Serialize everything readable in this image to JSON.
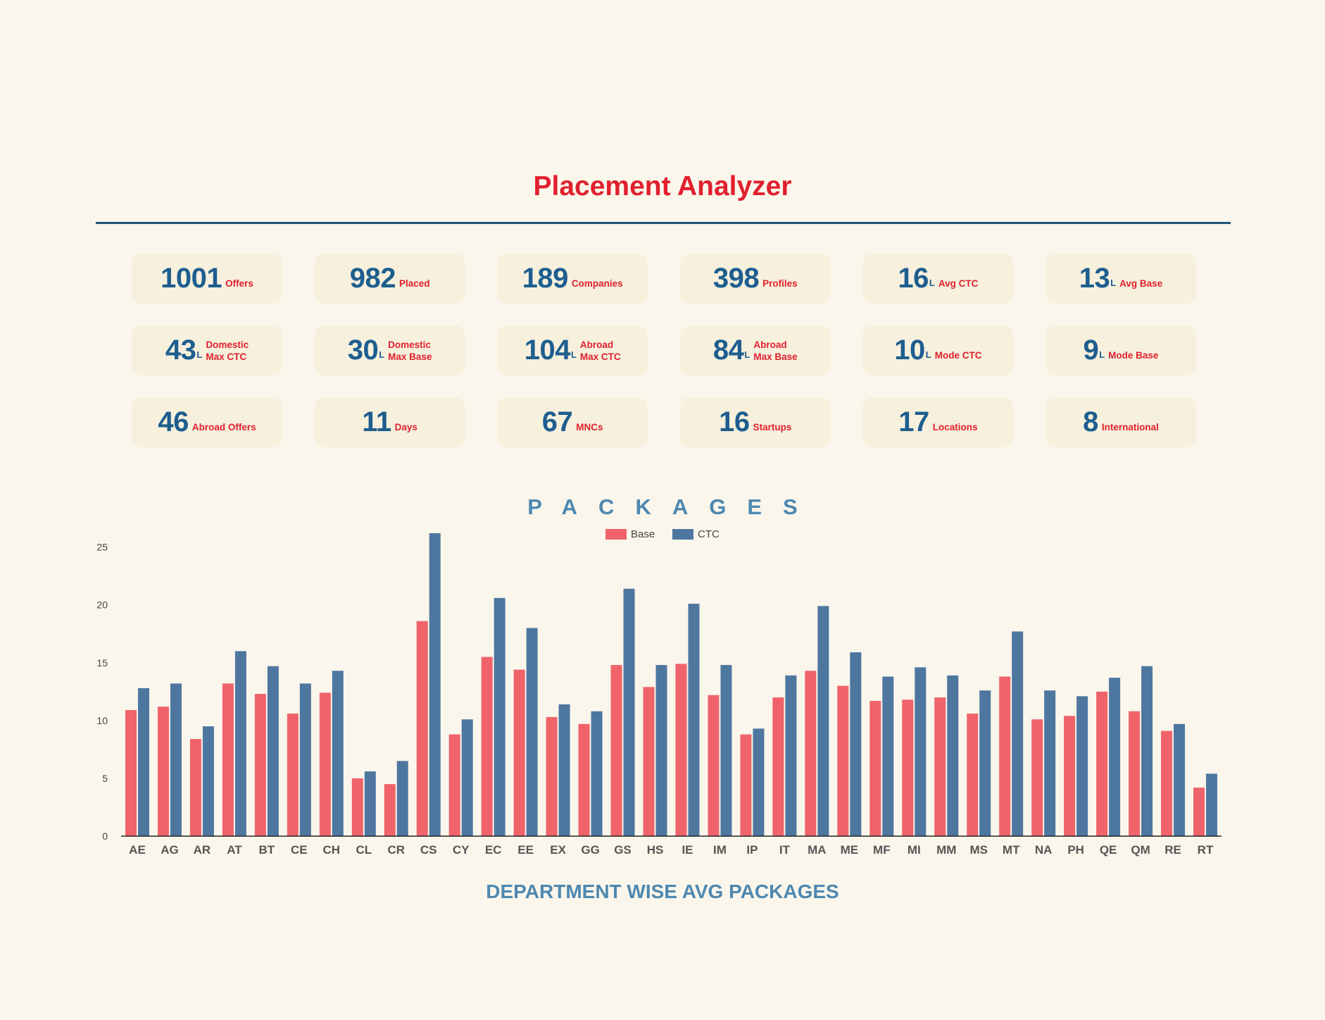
{
  "header": {
    "title": "Placement Analyzer"
  },
  "stats": [
    {
      "value": "1001",
      "unit": "",
      "label": "Offers"
    },
    {
      "value": "982",
      "unit": "",
      "label": "Placed"
    },
    {
      "value": "189",
      "unit": "",
      "label": "Companies"
    },
    {
      "value": "398",
      "unit": "",
      "label": "Profiles"
    },
    {
      "value": "16",
      "unit": "L",
      "label": "Avg CTC"
    },
    {
      "value": "13",
      "unit": "L",
      "label": "Avg Base"
    },
    {
      "value": "43",
      "unit": "L",
      "label": "Domestic\nMax CTC"
    },
    {
      "value": "30",
      "unit": "L",
      "label": "Domestic\nMax Base"
    },
    {
      "value": "104",
      "unit": "L",
      "label": "Abroad\nMax CTC"
    },
    {
      "value": "84",
      "unit": "L",
      "label": "Abroad\nMax Base"
    },
    {
      "value": "10",
      "unit": "L",
      "label": "Mode CTC"
    },
    {
      "value": "9",
      "unit": "L",
      "label": "Mode Base"
    },
    {
      "value": "46",
      "unit": "",
      "label": "Abroad Offers"
    },
    {
      "value": "11",
      "unit": "",
      "label": "Days"
    },
    {
      "value": "67",
      "unit": "",
      "label": "MNCs"
    },
    {
      "value": "16",
      "unit": "",
      "label": "Startups"
    },
    {
      "value": "17",
      "unit": "",
      "label": "Locations"
    },
    {
      "value": "8",
      "unit": "",
      "label": "International"
    }
  ],
  "chart_data": {
    "type": "bar",
    "title": "PACKAGES",
    "xlabel": "DEPARTMENT WISE AVG PACKAGES",
    "ylabel": "",
    "ylim": [
      0,
      26.5
    ],
    "yticks": [
      0,
      5,
      10,
      15,
      20,
      25
    ],
    "legend_position": "top-center",
    "grid": false,
    "categories": [
      "AE",
      "AG",
      "AR",
      "AT",
      "BT",
      "CE",
      "CH",
      "CL",
      "CR",
      "CS",
      "CY",
      "EC",
      "EE",
      "EX",
      "GG",
      "GS",
      "HS",
      "IE",
      "IM",
      "IP",
      "IT",
      "MA",
      "ME",
      "MF",
      "MI",
      "MM",
      "MS",
      "MT",
      "NA",
      "PH",
      "QE",
      "QM",
      "RE",
      "RT"
    ],
    "series": [
      {
        "name": "Base",
        "color": "#f0636b",
        "values": [
          10.9,
          11.2,
          8.4,
          13.2,
          12.3,
          10.6,
          12.4,
          5.0,
          4.5,
          18.6,
          8.8,
          15.5,
          14.4,
          10.3,
          9.7,
          14.8,
          12.9,
          14.9,
          12.2,
          8.8,
          12.0,
          14.3,
          13.0,
          11.7,
          11.8,
          12.0,
          10.6,
          13.8,
          10.1,
          10.4,
          12.5,
          10.8,
          9.1,
          4.2
        ]
      },
      {
        "name": "CTC",
        "color": "#4e77a0",
        "values": [
          12.8,
          13.2,
          9.5,
          16.0,
          14.7,
          13.2,
          14.3,
          5.6,
          6.5,
          26.2,
          10.1,
          20.6,
          18.0,
          11.4,
          10.8,
          21.4,
          14.8,
          20.1,
          14.8,
          9.3,
          13.9,
          19.9,
          15.9,
          13.8,
          14.6,
          13.9,
          12.6,
          17.7,
          12.6,
          12.1,
          13.7,
          14.7,
          9.7,
          5.4
        ]
      }
    ]
  }
}
